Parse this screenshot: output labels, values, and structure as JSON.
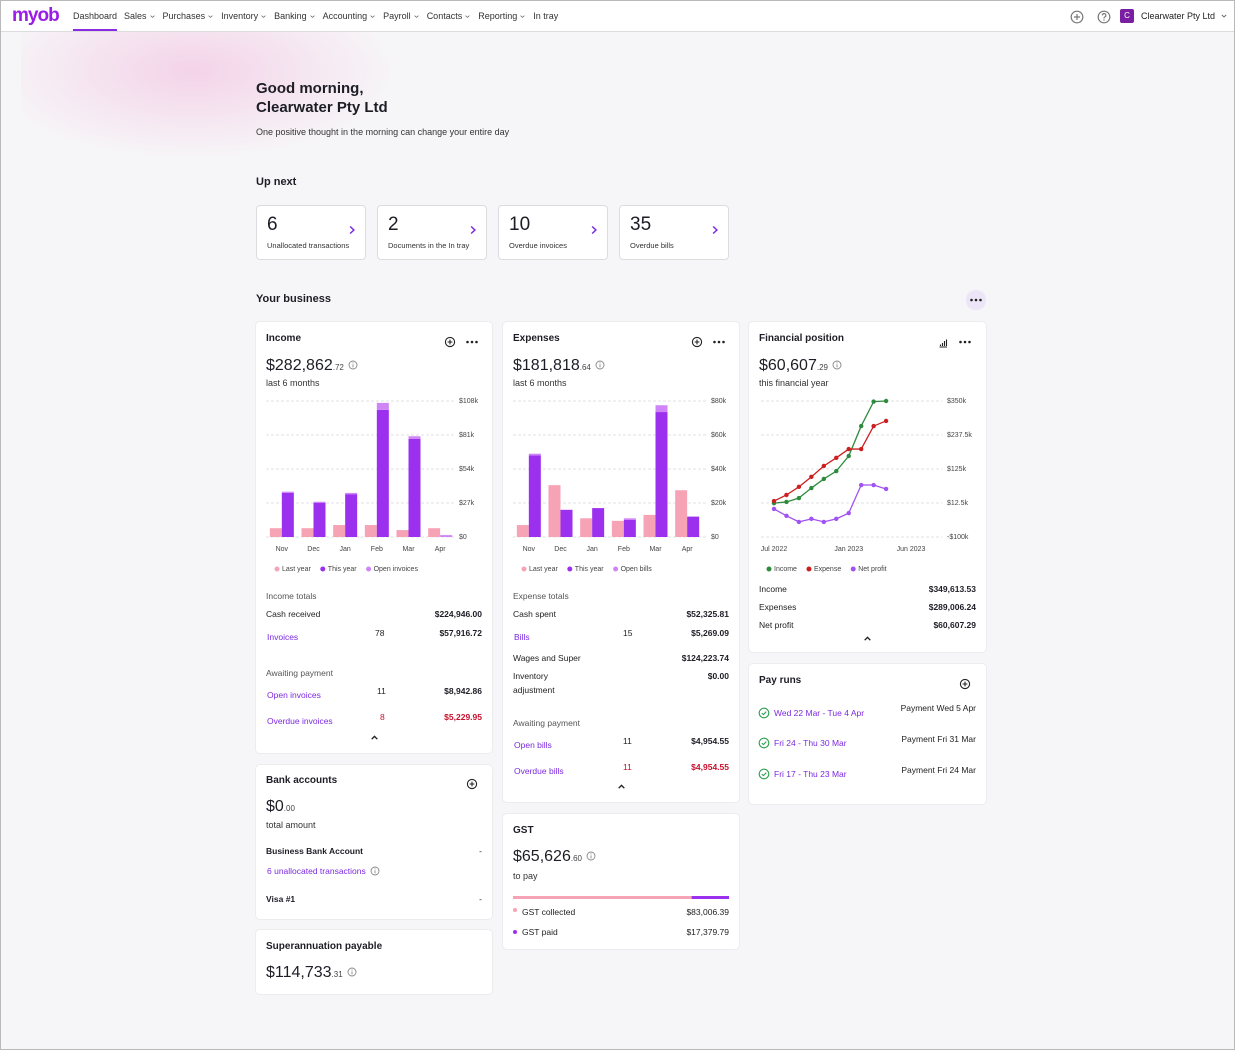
{
  "nav": {
    "logo": "myob",
    "items": [
      "Dashboard",
      "Sales",
      "Purchases",
      "Inventory",
      "Banking",
      "Accounting",
      "Payroll",
      "Contacts",
      "Reporting",
      "In tray"
    ],
    "avatar": "C",
    "company": "Clearwater Pty Ltd"
  },
  "greeting": {
    "salutation": "Good morning,",
    "name": "Clearwater Pty Ltd",
    "message": "One positive thought in the morning can change your entire day"
  },
  "up_next": {
    "title": "Up next",
    "items": [
      {
        "count": 6,
        "label": "Unallocated transactions"
      },
      {
        "count": 2,
        "label": "Documents in the In tray"
      },
      {
        "count": 10,
        "label": "Overdue invoices"
      },
      {
        "count": 35,
        "label": "Overdue bills"
      }
    ]
  },
  "your_business": {
    "title": "Your business"
  },
  "income": {
    "title": "Income",
    "amount": "$282,862",
    "cents": ".72",
    "period": "last 6 months",
    "totals_title": "Income totals",
    "rows": [
      {
        "label": "Cash received",
        "value": "$224,946.00"
      },
      {
        "label": "Invoices",
        "count": 78,
        "value": "$57,916.72"
      }
    ],
    "awaiting_title": "Awaiting payment",
    "awaiting": [
      {
        "label": "Open invoices",
        "count": 11,
        "value": "$8,942.86"
      },
      {
        "label": "Overdue invoices",
        "count": 8,
        "value": "$5,229.95"
      }
    ]
  },
  "expenses": {
    "title": "Expenses",
    "amount": "$181,818",
    "cents": ".64",
    "period": "last 6 months",
    "totals_title": "Expense totals",
    "rows": [
      {
        "label": "Cash spent",
        "value": "$52,325.81"
      },
      {
        "label": "Bills",
        "count": 15,
        "value": "$5,269.09"
      },
      {
        "label": "Wages and Super",
        "value": "$124,223.74"
      },
      {
        "label": "Inventory adjustment",
        "value": "$0.00"
      }
    ],
    "awaiting_title": "Awaiting payment",
    "awaiting": [
      {
        "label": "Open bills",
        "count": 11,
        "value": "$4,954.55"
      },
      {
        "label": "Overdue bills",
        "count": 11,
        "value": "$4,954.55"
      }
    ]
  },
  "financial_position": {
    "title": "Financial position",
    "amount": "$60,607",
    "cents": ".29",
    "period": "this financial year",
    "rows": [
      {
        "label": "Income",
        "value": "$349,613.53"
      },
      {
        "label": "Expenses",
        "value": "$289,006.24"
      },
      {
        "label": "Net profit",
        "value": "$60,607.29"
      }
    ]
  },
  "pay_runs": {
    "title": "Pay runs",
    "items": [
      {
        "period": "Wed 22 Mar - Tue 4 Apr",
        "payment": "Payment Wed 5 Apr"
      },
      {
        "period": "Fri 24 - Thu 30 Mar",
        "payment": "Payment Fri 31 Mar"
      },
      {
        "period": "Fri 17 - Thu 23 Mar",
        "payment": "Payment Fri 24 Mar"
      }
    ]
  },
  "bank_accounts": {
    "title": "Bank accounts",
    "amount": "$0",
    "cents": ".00",
    "caption": "total amount",
    "accounts": [
      {
        "name": "Business Bank Account",
        "balance": "-",
        "note": "6 unallocated transactions"
      },
      {
        "name": "Visa #1",
        "balance": "-"
      }
    ]
  },
  "superannuation": {
    "title": "Superannuation payable",
    "amount": "$114,733",
    "cents": ".31"
  },
  "gst": {
    "title": "GST",
    "amount": "$65,626",
    "cents": ".60",
    "caption": "to pay",
    "rows": [
      {
        "label": "GST collected",
        "value": "$83,006.39",
        "color": "#f6a3b6"
      },
      {
        "label": "GST paid",
        "value": "$17,379.79",
        "color": "#9b30ee"
      }
    ]
  },
  "chart_data": [
    {
      "type": "bar",
      "categories": [
        "Nov",
        "Dec",
        "Jan",
        "Feb",
        "Mar",
        "Apr"
      ],
      "series": [
        {
          "name": "Last year",
          "color": "#f6a3b6",
          "values": [
            7000,
            7000,
            9500,
            9500,
            5500,
            7000
          ]
        },
        {
          "name": "This year",
          "color": "#9b30ee",
          "values": [
            35000,
            27000,
            34000,
            101000,
            78000,
            0
          ]
        },
        {
          "name": "Open invoices",
          "color": "#cf85f7",
          "values": [
            1000,
            1000,
            1000,
            5500,
            2000,
            1500
          ],
          "stack_on": 1
        }
      ],
      "ylim": [
        0,
        108000
      ],
      "yticks": [
        {
          "value": 0,
          "label": "$0"
        },
        {
          "value": 27000,
          "label": "$27k"
        },
        {
          "value": 54000,
          "label": "$54k"
        },
        {
          "value": 81000,
          "label": "$81k"
        },
        {
          "value": 108000,
          "label": "$108k"
        }
      ],
      "grid": true
    },
    {
      "type": "bar",
      "categories": [
        "Nov",
        "Dec",
        "Jan",
        "Feb",
        "Mar",
        "Apr"
      ],
      "series": [
        {
          "name": "Last year",
          "color": "#f6a3b6",
          "values": [
            7000,
            30500,
            11000,
            9500,
            13000,
            27500
          ]
        },
        {
          "name": "This year",
          "color": "#9b30ee",
          "values": [
            48000,
            16000,
            17000,
            10000,
            73500,
            12000
          ]
        },
        {
          "name": "Open bills",
          "color": "#cf85f7",
          "values": [
            1000,
            0,
            0,
            1000,
            4000,
            0
          ],
          "stack_on": 1
        }
      ],
      "ylim": [
        0,
        80000
      ],
      "yticks": [
        {
          "value": 0,
          "label": "$0"
        },
        {
          "value": 20000,
          "label": "$20k"
        },
        {
          "value": 40000,
          "label": "$40k"
        },
        {
          "value": 60000,
          "label": "$60k"
        },
        {
          "value": 80000,
          "label": "$80k"
        }
      ],
      "grid": true
    },
    {
      "type": "line",
      "categories": [
        "Jul 2022",
        null,
        null,
        null,
        null,
        null,
        "Jan 2023",
        null,
        null,
        null,
        null,
        "Jun 2023"
      ],
      "series": [
        {
          "name": "Income",
          "color": "#2e8b3e",
          "values": [
            12000,
            16000,
            29000,
            62000,
            92000,
            118000,
            168000,
            267000,
            348000,
            350000,
            null,
            null
          ]
        },
        {
          "name": "Expense",
          "color": "#cc1f1f",
          "values": [
            19000,
            39000,
            66000,
            99000,
            135000,
            162000,
            191000,
            191000,
            267000,
            284000,
            null,
            null
          ]
        },
        {
          "name": "Net profit",
          "color": "#a052f2",
          "values": [
            -7000,
            -30000,
            -50000,
            -40000,
            -50000,
            -40000,
            -21000,
            72000,
            72000,
            59000,
            null,
            null
          ]
        }
      ],
      "ylim": [
        -100000,
        350000
      ],
      "yticks": [
        {
          "value": -100000,
          "label": "-$100k"
        },
        {
          "value": 12500,
          "label": "$12.5k"
        },
        {
          "value": 125000,
          "label": "$125k"
        },
        {
          "value": 237500,
          "label": "$237.5k"
        },
        {
          "value": 350000,
          "label": "$350k"
        }
      ],
      "grid": true
    }
  ]
}
